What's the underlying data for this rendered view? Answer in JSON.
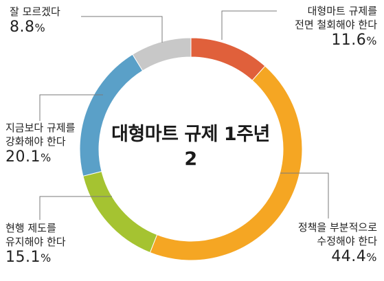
{
  "chart_data": {
    "type": "pie",
    "title": "대형마트 규제 1주년",
    "subtitle": "2",
    "slices": [
      {
        "label_lines": [
          "대형마트 규제를",
          "전면 철회해야 한다"
        ],
        "value": 11.6,
        "pct_text": "11.6",
        "color": "#e0603b"
      },
      {
        "label_lines": [
          "정책을 부분적으로",
          "수정해야 한다"
        ],
        "value": 44.4,
        "pct_text": "44.4",
        "color": "#f5a623"
      },
      {
        "label_lines": [
          "현행 제도를",
          "유지해야 한다"
        ],
        "value": 15.1,
        "pct_text": "15.1",
        "color": "#a5c331"
      },
      {
        "label_lines": [
          "지금보다 규제를",
          "강화해야 한다"
        ],
        "value": 20.1,
        "pct_text": "20.1",
        "color": "#5aa0c8"
      },
      {
        "label_lines": [
          "잘 모르겠다"
        ],
        "value": 8.8,
        "pct_text": "8.8",
        "color": "#c8c8c8"
      }
    ],
    "unit": "%"
  }
}
